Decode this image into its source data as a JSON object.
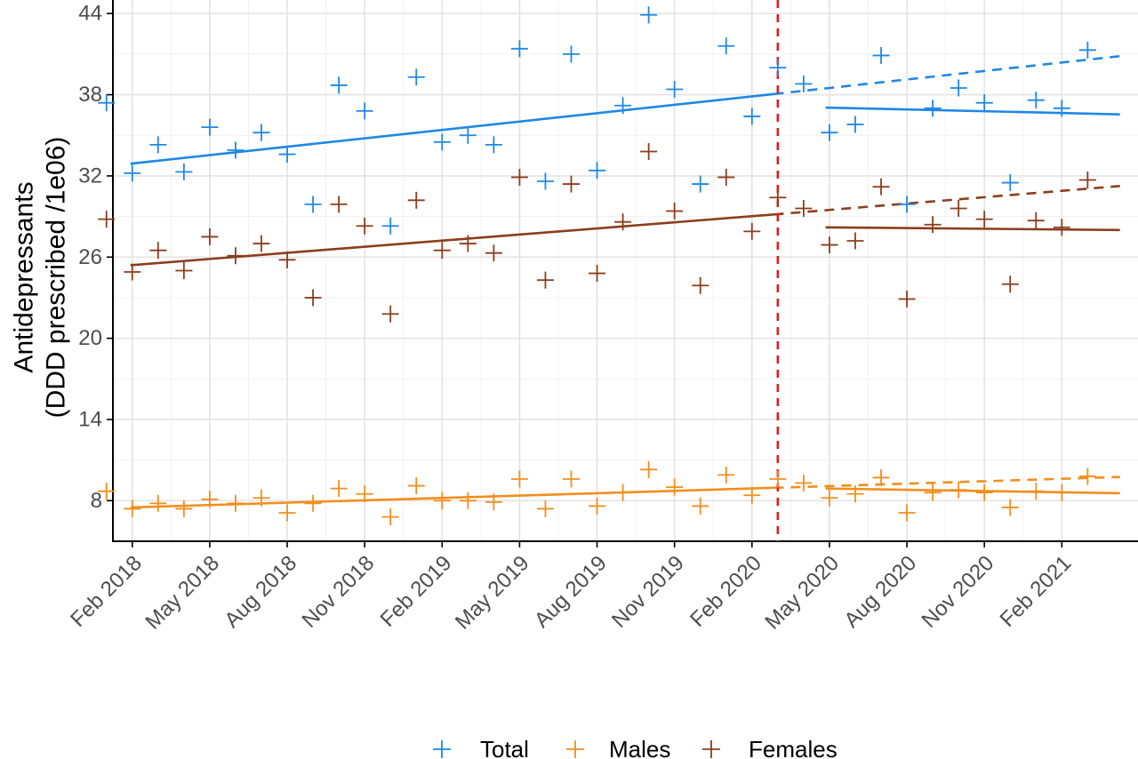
{
  "chart_data": {
    "type": "scatter",
    "title": "",
    "xlabel": "",
    "ylabel_lines": [
      "Antidepressants",
      "(DDD prescribed /1e06)"
    ],
    "ylim": [
      5,
      45
    ],
    "yticks": [
      8,
      14,
      20,
      26,
      32,
      38,
      44
    ],
    "x_start": "2018-01",
    "xlim_months": [
      0.25,
      39.95
    ],
    "xticks": [
      {
        "label": "Feb 2018",
        "month": "2018-02"
      },
      {
        "label": "May 2018",
        "month": "2018-05"
      },
      {
        "label": "Aug 2018",
        "month": "2018-08"
      },
      {
        "label": "Nov 2018",
        "month": "2018-11"
      },
      {
        "label": "Feb 2019",
        "month": "2019-02"
      },
      {
        "label": "May 2019",
        "month": "2019-05"
      },
      {
        "label": "Aug 2019",
        "month": "2019-08"
      },
      {
        "label": "Nov 2019",
        "month": "2019-11"
      },
      {
        "label": "Feb 2020",
        "month": "2020-02"
      },
      {
        "label": "May 2020",
        "month": "2020-05"
      },
      {
        "label": "Aug 2020",
        "month": "2020-08"
      },
      {
        "label": "Nov 2020",
        "month": "2020-11"
      },
      {
        "label": "Feb 2021",
        "month": "2021-02"
      }
    ],
    "intervention_month": "2020-03",
    "intervention_color": "#e31a1c",
    "grid": true,
    "legend_position": "bottom",
    "series": [
      {
        "name": "Total",
        "color": "#1e88e5",
        "x": [
          "2018-01",
          "2018-02",
          "2018-03",
          "2018-04",
          "2018-05",
          "2018-06",
          "2018-07",
          "2018-08",
          "2018-09",
          "2018-10",
          "2018-11",
          "2018-12",
          "2019-01",
          "2019-02",
          "2019-03",
          "2019-04",
          "2019-05",
          "2019-06",
          "2019-07",
          "2019-08",
          "2019-09",
          "2019-10",
          "2019-11",
          "2019-12",
          "2020-01",
          "2020-02",
          "2020-03",
          "2020-04",
          "2020-05",
          "2020-06",
          "2020-07",
          "2020-08",
          "2020-09",
          "2020-10",
          "2020-11",
          "2020-12",
          "2021-01",
          "2021-02",
          "2021-03"
        ],
        "y": [
          37.4,
          32.2,
          34.3,
          32.3,
          35.6,
          33.9,
          35.2,
          33.6,
          29.9,
          38.7,
          36.8,
          28.3,
          39.3,
          34.5,
          35.0,
          34.3,
          41.4,
          31.6,
          41.0,
          32.4,
          37.2,
          43.9,
          38.4,
          31.4,
          41.6,
          36.4,
          40.0,
          38.8,
          35.2,
          35.8,
          40.9,
          29.9,
          37.0,
          38.5,
          37.4,
          31.5,
          37.6,
          37.0,
          41.3
        ],
        "trend_pre": [
          [
            0.93,
            32.9
          ],
          [
            25.85,
            38.05
          ]
        ],
        "trend_counterfactual": [
          [
            25.85,
            38.05
          ],
          [
            39.25,
            40.85
          ]
        ],
        "trend_post": [
          [
            27.85,
            37.05
          ],
          [
            39.25,
            36.55
          ]
        ]
      },
      {
        "name": "Males",
        "color": "#f28e1c",
        "x": [
          "2018-01",
          "2018-02",
          "2018-03",
          "2018-04",
          "2018-05",
          "2018-06",
          "2018-07",
          "2018-08",
          "2018-09",
          "2018-10",
          "2018-11",
          "2018-12",
          "2019-01",
          "2019-02",
          "2019-03",
          "2019-04",
          "2019-05",
          "2019-06",
          "2019-07",
          "2019-08",
          "2019-09",
          "2019-10",
          "2019-11",
          "2019-12",
          "2020-01",
          "2020-02",
          "2020-03",
          "2020-04",
          "2020-05",
          "2020-06",
          "2020-07",
          "2020-08",
          "2020-09",
          "2020-10",
          "2020-11",
          "2020-12",
          "2021-01",
          "2021-02",
          "2021-03"
        ],
        "y": [
          8.7,
          7.4,
          7.8,
          7.4,
          8.1,
          7.8,
          8.2,
          7.1,
          7.8,
          8.9,
          8.5,
          6.8,
          9.1,
          8.0,
          8.0,
          7.9,
          9.6,
          7.4,
          9.6,
          7.6,
          8.6,
          10.3,
          9.0,
          7.6,
          9.9,
          8.4,
          9.6,
          9.3,
          8.2,
          8.5,
          9.7,
          7.1,
          8.6,
          8.8,
          8.6,
          7.5,
          8.7,
          8.6,
          9.8
        ],
        "trend_pre": [
          [
            0.93,
            7.5
          ],
          [
            25.85,
            8.95
          ]
        ],
        "trend_counterfactual": [
          [
            25.85,
            8.95
          ],
          [
            39.25,
            9.75
          ]
        ],
        "trend_post": [
          [
            27.85,
            8.9
          ],
          [
            39.25,
            8.55
          ]
        ]
      },
      {
        "name": "Females",
        "color": "#8b3e1c",
        "x": [
          "2018-01",
          "2018-02",
          "2018-03",
          "2018-04",
          "2018-05",
          "2018-06",
          "2018-07",
          "2018-08",
          "2018-09",
          "2018-10",
          "2018-11",
          "2018-12",
          "2019-01",
          "2019-02",
          "2019-03",
          "2019-04",
          "2019-05",
          "2019-06",
          "2019-07",
          "2019-08",
          "2019-09",
          "2019-10",
          "2019-11",
          "2019-12",
          "2020-01",
          "2020-02",
          "2020-03",
          "2020-04",
          "2020-05",
          "2020-06",
          "2020-07",
          "2020-08",
          "2020-09",
          "2020-10",
          "2020-11",
          "2020-12",
          "2021-01",
          "2021-02",
          "2021-03"
        ],
        "y": [
          28.8,
          24.9,
          26.5,
          25.0,
          27.5,
          26.1,
          27.0,
          25.8,
          23.0,
          29.9,
          28.3,
          21.8,
          30.2,
          26.5,
          27.0,
          26.3,
          31.9,
          24.3,
          31.4,
          24.8,
          28.6,
          33.8,
          29.4,
          23.9,
          31.9,
          27.9,
          30.4,
          29.6,
          26.9,
          27.2,
          31.2,
          22.9,
          28.4,
          29.6,
          28.8,
          24.0,
          28.7,
          28.2,
          31.7
        ],
        "trend_pre": [
          [
            0.93,
            25.4
          ],
          [
            25.85,
            29.15
          ]
        ],
        "trend_counterfactual": [
          [
            25.85,
            29.15
          ],
          [
            39.25,
            31.25
          ]
        ],
        "trend_post": [
          [
            27.85,
            28.2
          ],
          [
            39.25,
            28.0
          ]
        ]
      }
    ]
  }
}
